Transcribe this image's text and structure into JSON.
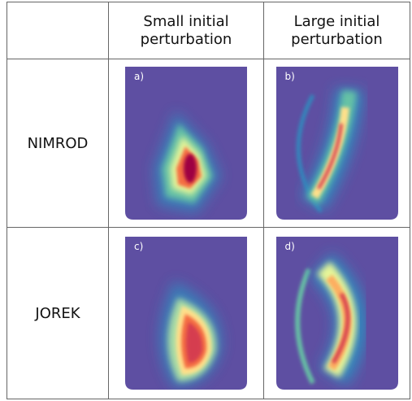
{
  "table": {
    "header": [
      "Small initial perturbation",
      "Large initial perturbation"
    ],
    "rows": [
      {
        "label": "NIMROD",
        "panels": [
          "a)",
          "b)"
        ]
      },
      {
        "label": "JOREK",
        "panels": [
          "c)",
          "d)"
        ]
      }
    ]
  }
}
